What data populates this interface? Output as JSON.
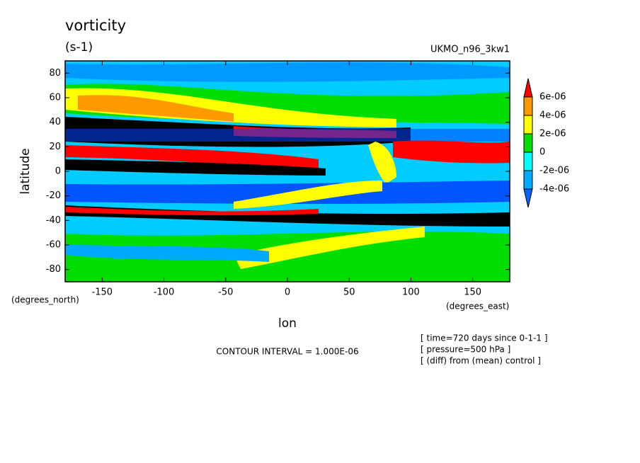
{
  "chart_data": {
    "type": "contour",
    "title": "vorticity",
    "units": "(s-1)",
    "dataset": "UKMO_n96_3kw1",
    "x_label": "lon",
    "y_label": "latitude",
    "x_units": "(degrees_east)",
    "y_units": "(degrees_north)",
    "xlim": [
      -180,
      180
    ],
    "ylim": [
      -90,
      90
    ],
    "xticks": [
      -150,
      -100,
      -50,
      0,
      50,
      100,
      150
    ],
    "yticks": [
      -80,
      -60,
      -40,
      -20,
      0,
      20,
      40,
      60,
      80
    ],
    "colorbar": {
      "levels": [
        -4e-06,
        -2e-06,
        0,
        2e-06,
        4e-06,
        6e-06
      ],
      "level_labels": [
        "-4e-06",
        "-2e-06",
        "0",
        "2e-06",
        "4e-06",
        "6e-06"
      ],
      "colors": [
        "#0066ff",
        "#00aaff",
        "#00ffff",
        "#00dd00",
        "#ffff00",
        "#ff9900",
        "#ff0000"
      ]
    },
    "contour_interval": "CONTOUR INTERVAL = 1.000E-06",
    "notes": [
      "[ time=720 days since 0-1-1 ]",
      "[ pressure=500 hPa ]",
      "[ (diff) from (mean) control ]"
    ]
  }
}
